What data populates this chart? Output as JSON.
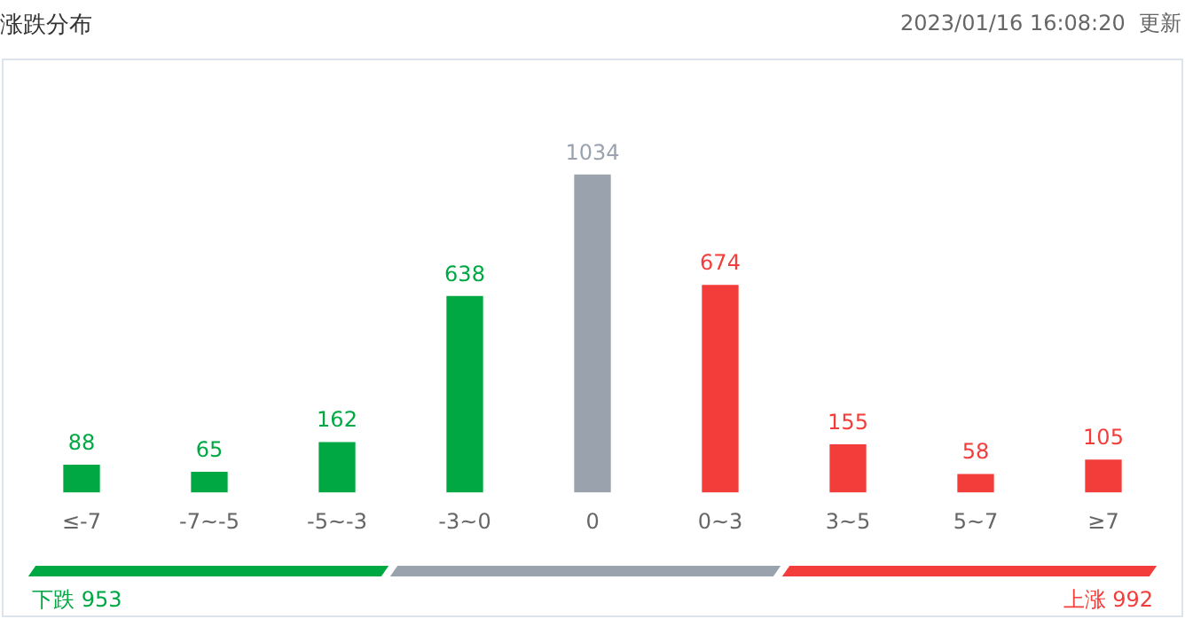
{
  "chart_data": {
    "type": "bar",
    "title": "涨跌分布",
    "subtitle": "2023/01/16 16:08:20  更新",
    "categories": [
      "≤-7",
      "-7~-5",
      "-5~-3",
      "-3~0",
      "0",
      "0~3",
      "3~5",
      "5~7",
      "≥7"
    ],
    "values": [
      88,
      65,
      162,
      638,
      1034,
      674,
      155,
      58,
      105
    ],
    "colors": [
      "#00a843",
      "#00a843",
      "#00a843",
      "#00a843",
      "#9aa3ad",
      "#f23d3a",
      "#f23d3a",
      "#f23d3a",
      "#f23d3a"
    ],
    "data_labels": true,
    "grid": false,
    "legend": false,
    "annotations": [
      "下跌 953",
      "上涨 992"
    ]
  }
}
